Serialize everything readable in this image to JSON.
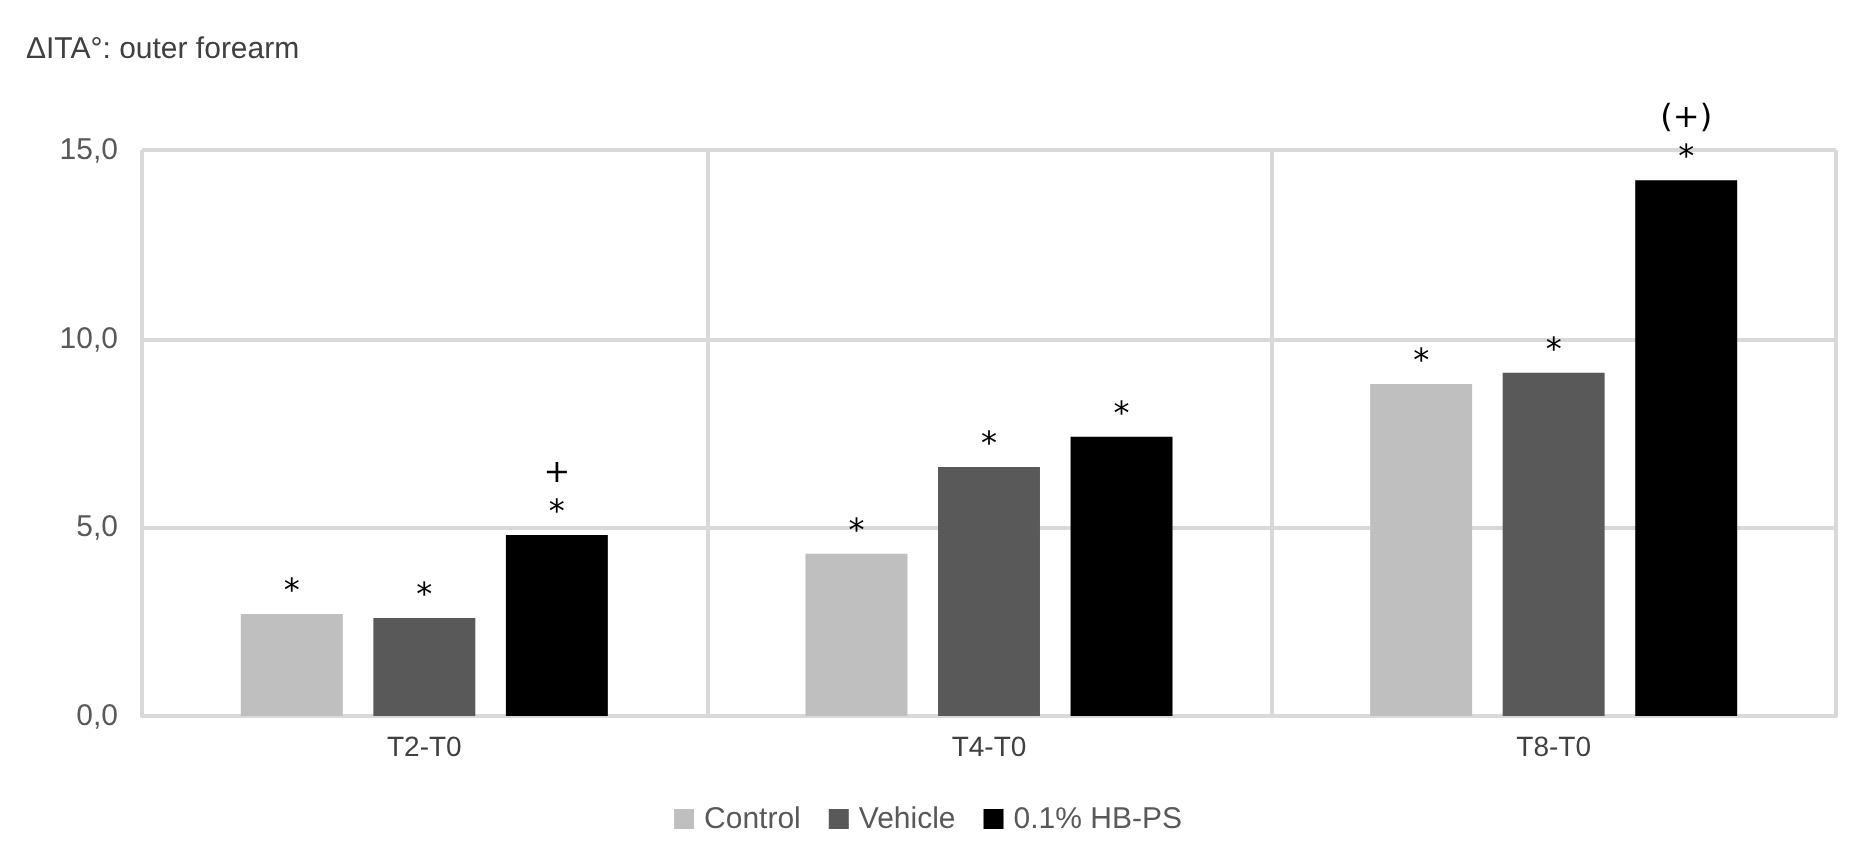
{
  "chart_data": {
    "type": "bar",
    "title": "ΔITA°: outer forearm",
    "categories": [
      "T2-T0",
      "T4-T0",
      "T8-T0"
    ],
    "series": [
      {
        "name": "Control",
        "color": "#bfbfbf",
        "values": [
          2.7,
          4.3,
          8.8
        ],
        "value_labels": [
          "*",
          "*",
          "*"
        ]
      },
      {
        "name": "Vehicle",
        "color": "#595959",
        "values": [
          2.6,
          6.6,
          9.1
        ],
        "value_labels": [
          "*",
          "*",
          "*"
        ]
      },
      {
        "name": "0.1% HB-PS",
        "color": "#000000",
        "values": [
          4.8,
          7.4,
          14.2
        ],
        "value_labels": [
          "+\n*",
          "*",
          "(+)\n*"
        ]
      }
    ],
    "ylim": [
      0,
      15
    ],
    "yticks": [
      {
        "value": 0,
        "label": "0,0"
      },
      {
        "value": 5,
        "label": "5,0"
      },
      {
        "value": 10,
        "label": "10,0"
      },
      {
        "value": 15,
        "label": "15,0"
      }
    ],
    "grid": true,
    "legend": "bottom"
  }
}
